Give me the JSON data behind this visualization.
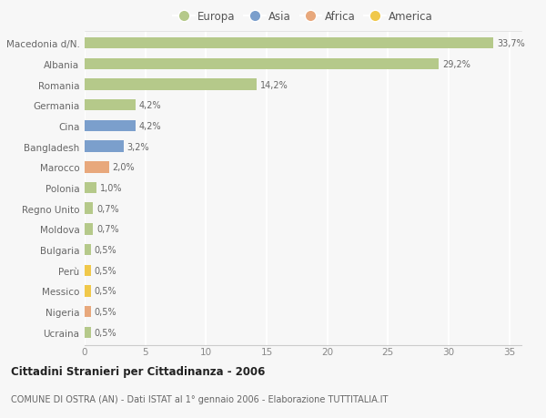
{
  "categories": [
    "Macedonia d/N.",
    "Albania",
    "Romania",
    "Germania",
    "Cina",
    "Bangladesh",
    "Marocco",
    "Polonia",
    "Regno Unito",
    "Moldova",
    "Bulgaria",
    "Perù",
    "Messico",
    "Nigeria",
    "Ucraina"
  ],
  "values": [
    33.7,
    29.2,
    14.2,
    4.2,
    4.2,
    3.2,
    2.0,
    1.0,
    0.7,
    0.7,
    0.5,
    0.5,
    0.5,
    0.5,
    0.5
  ],
  "labels": [
    "33,7%",
    "29,2%",
    "14,2%",
    "4,2%",
    "4,2%",
    "3,2%",
    "2,0%",
    "1,0%",
    "0,7%",
    "0,7%",
    "0,5%",
    "0,5%",
    "0,5%",
    "0,5%",
    "0,5%"
  ],
  "colors": [
    "#b5c98a",
    "#b5c98a",
    "#b5c98a",
    "#b5c98a",
    "#7b9fcc",
    "#7b9fcc",
    "#e8a87c",
    "#b5c98a",
    "#b5c98a",
    "#b5c98a",
    "#b5c98a",
    "#f0c84a",
    "#f0c84a",
    "#e8a87c",
    "#b5c98a"
  ],
  "legend_labels": [
    "Europa",
    "Asia",
    "Africa",
    "America"
  ],
  "legend_colors": [
    "#b5c98a",
    "#7b9fcc",
    "#e8a87c",
    "#f0c84a"
  ],
  "xlim": [
    0,
    36
  ],
  "xticks": [
    0,
    5,
    10,
    15,
    20,
    25,
    30,
    35
  ],
  "title": "Cittadini Stranieri per Cittadinanza - 2006",
  "subtitle": "COMUNE DI OSTRA (AN) - Dati ISTAT al 1° gennaio 2006 - Elaborazione TUTTITALIA.IT",
  "background_color": "#f7f7f7",
  "grid_color": "#ffffff",
  "bar_height": 0.55
}
